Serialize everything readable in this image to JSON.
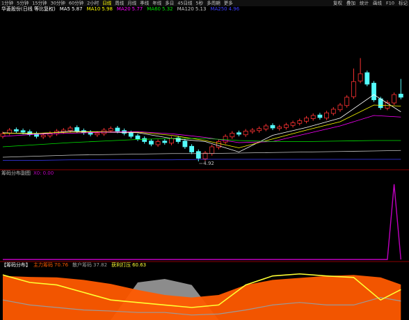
{
  "toolbar": {
    "tabs": [
      "1分钟",
      "5分钟",
      "15分钟",
      "30分钟",
      "60分钟",
      "2小时",
      "日线",
      "周线",
      "月线",
      "季线",
      "年线",
      "多日",
      "45日线",
      "5秒",
      "多周期",
      "更多"
    ],
    "right": [
      "复权",
      "叠加",
      "统计",
      "画线",
      "F10",
      "标记"
    ]
  },
  "chart_data": [
    {
      "type": "candlestick",
      "title": "华菱股份(日线 等比复权)",
      "ylim": [
        4.8,
        7.8
      ],
      "up_color": "#ff3232",
      "down_color": "#54fcfc",
      "open": [
        5.4,
        5.46,
        5.53,
        5.51,
        5.49,
        5.45,
        5.39,
        5.41,
        5.45,
        5.49,
        5.51,
        5.57,
        5.51,
        5.48,
        5.43,
        5.45,
        5.51,
        5.56,
        5.51,
        5.47,
        5.41,
        5.36,
        5.31,
        5.24,
        5.31,
        5.27,
        5.37,
        5.31,
        5.21,
        5.11,
        4.97,
        5.07,
        5.19,
        5.29,
        5.39,
        5.47,
        5.43,
        5.49,
        5.51,
        5.54,
        5.61,
        5.55,
        5.57,
        5.61,
        5.65,
        5.69,
        5.74,
        5.81,
        5.75,
        5.84,
        5.91,
        5.99,
        6.16,
        6.46,
        6.62,
        6.42,
        6.12,
        5.94,
        6.04,
        6.21
      ],
      "close": [
        5.45,
        5.52,
        5.5,
        5.48,
        5.44,
        5.4,
        5.42,
        5.46,
        5.5,
        5.52,
        5.56,
        5.5,
        5.47,
        5.44,
        5.46,
        5.52,
        5.55,
        5.5,
        5.46,
        5.4,
        5.35,
        5.3,
        5.25,
        5.3,
        5.28,
        5.36,
        5.3,
        5.2,
        5.1,
        4.98,
        5.08,
        5.2,
        5.3,
        5.4,
        5.46,
        5.44,
        5.5,
        5.52,
        5.55,
        5.6,
        5.56,
        5.58,
        5.62,
        5.66,
        5.7,
        5.75,
        5.8,
        5.76,
        5.85,
        5.92,
        6.0,
        6.15,
        6.45,
        6.6,
        6.4,
        6.1,
        5.95,
        6.05,
        6.2,
        6.15
      ],
      "high": [
        5.49,
        5.56,
        5.57,
        5.55,
        5.53,
        5.49,
        5.46,
        5.5,
        5.54,
        5.56,
        5.6,
        5.61,
        5.55,
        5.52,
        5.5,
        5.56,
        5.59,
        5.6,
        5.55,
        5.51,
        5.45,
        5.4,
        5.35,
        5.34,
        5.35,
        5.4,
        5.41,
        5.35,
        5.25,
        5.15,
        5.12,
        5.24,
        5.34,
        5.44,
        5.5,
        5.51,
        5.54,
        5.56,
        5.59,
        5.64,
        5.65,
        5.62,
        5.66,
        5.7,
        5.74,
        5.79,
        5.84,
        5.85,
        5.89,
        5.96,
        6.04,
        6.19,
        6.7,
        6.9,
        6.66,
        6.46,
        6.16,
        6.09,
        6.24,
        6.5
      ],
      "low": [
        5.36,
        5.42,
        5.46,
        5.44,
        5.4,
        5.36,
        5.35,
        5.37,
        5.41,
        5.45,
        5.47,
        5.46,
        5.43,
        5.4,
        5.39,
        5.41,
        5.47,
        5.46,
        5.42,
        5.36,
        5.31,
        5.26,
        5.21,
        5.2,
        5.24,
        5.23,
        5.26,
        5.16,
        5.06,
        4.92,
        4.93,
        5.03,
        5.15,
        5.25,
        5.35,
        5.4,
        5.39,
        5.45,
        5.47,
        5.5,
        5.52,
        5.51,
        5.53,
        5.57,
        5.61,
        5.65,
        5.7,
        5.72,
        5.71,
        5.8,
        5.87,
        5.95,
        6.12,
        6.42,
        6.36,
        6.06,
        5.91,
        5.9,
        6.0,
        6.11
      ],
      "low_label_index": 29,
      "series": [
        {
          "name": "MA5",
          "color": "#ffffff",
          "x": [
            0,
            5,
            10,
            15,
            20,
            25,
            30,
            35,
            40,
            45,
            50,
            55,
            59
          ],
          "values": [
            5.47,
            5.44,
            5.5,
            5.48,
            5.47,
            5.36,
            5.3,
            5.1,
            5.42,
            5.57,
            5.75,
            6.2,
            5.87
          ]
        },
        {
          "name": "MA10",
          "color": "#ffff00",
          "x": [
            0,
            5,
            10,
            15,
            20,
            25,
            30,
            35,
            40,
            45,
            50,
            55,
            59
          ],
          "values": [
            5.46,
            5.46,
            5.48,
            5.49,
            5.48,
            5.42,
            5.32,
            5.18,
            5.35,
            5.52,
            5.68,
            6.0,
            5.98
          ]
        },
        {
          "name": "MA20",
          "color": "#ff00ff",
          "x": [
            0,
            5,
            10,
            15,
            20,
            25,
            30,
            35,
            40,
            45,
            50,
            55,
            59
          ],
          "values": [
            5.4,
            5.44,
            5.46,
            5.48,
            5.49,
            5.45,
            5.38,
            5.28,
            5.3,
            5.45,
            5.6,
            5.8,
            5.77
          ]
        },
        {
          "name": "MA60",
          "color": "#00e600",
          "x": [
            0,
            5,
            10,
            15,
            20,
            25,
            30,
            35,
            40,
            45,
            50,
            55,
            59
          ],
          "values": [
            5.2,
            5.24,
            5.28,
            5.31,
            5.34,
            5.36,
            5.36,
            5.32,
            5.3,
            5.3,
            5.31,
            5.32,
            5.32
          ]
        },
        {
          "name": "MA120",
          "color": "#c8c8c8",
          "x": [
            0,
            5,
            10,
            15,
            20,
            25,
            30,
            35,
            40,
            45,
            50,
            55,
            59
          ],
          "values": [
            5.0,
            5.02,
            5.04,
            5.05,
            5.06,
            5.07,
            5.07,
            5.08,
            5.09,
            5.1,
            5.11,
            5.12,
            5.13
          ]
        },
        {
          "name": "MA250",
          "color": "#3c3cff",
          "x": [
            0,
            5,
            10,
            15,
            20,
            25,
            30,
            35,
            40,
            45,
            50,
            55,
            59
          ],
          "values": [
            4.94,
            4.94,
            4.95,
            4.95,
            4.95,
            4.95,
            4.96,
            4.96,
            4.96,
            4.96,
            4.96,
            4.96,
            4.96
          ]
        }
      ]
    },
    {
      "type": "line",
      "title": "筹码分布副图",
      "legend_name": "X0:",
      "legend_value": 0,
      "legend_label": "0.00",
      "color": "#c000c0",
      "ylim": [
        0,
        1.1
      ],
      "values": [
        0,
        0,
        0,
        0,
        0,
        0,
        0,
        0,
        0,
        0,
        0,
        0,
        0,
        0,
        0,
        0,
        0,
        0,
        0,
        0,
        0,
        0,
        0,
        0,
        0,
        0,
        0,
        0,
        0,
        0,
        0,
        0,
        0,
        0,
        0,
        0,
        0,
        0,
        0,
        0,
        0,
        0,
        0,
        0,
        0,
        0,
        0,
        0,
        0,
        0,
        0,
        0,
        0,
        0,
        0,
        0,
        0,
        0,
        1,
        0
      ]
    },
    {
      "type": "area",
      "title": "【筹码分布】",
      "ylim": [
        0,
        100
      ],
      "x": [
        0,
        4,
        8,
        12,
        16,
        20,
        24,
        28,
        32,
        36,
        40,
        44,
        48,
        52,
        56,
        59
      ],
      "shade": {
        "color": "#8c8c8c",
        "values": [
          0,
          0,
          0,
          0,
          0,
          75,
          82,
          70,
          0,
          0,
          0,
          0,
          0,
          0,
          0,
          0
        ]
      },
      "series": [
        {
          "name": "主力筹码",
          "color": "#ff5a00",
          "style": "area",
          "values": [
            88,
            86,
            85,
            80,
            72,
            60,
            50,
            45,
            50,
            70,
            80,
            84,
            88,
            90,
            85,
            70.76
          ]
        },
        {
          "name": "散户筹码",
          "color": "#9a9a9a",
          "style": "line",
          "values": [
            40,
            30,
            25,
            20,
            18,
            15,
            15,
            10,
            12,
            20,
            30,
            35,
            30,
            30,
            45,
            37.82
          ]
        },
        {
          "name": "获利打压",
          "color": "#ffff33",
          "style": "line",
          "values": [
            90,
            75,
            70,
            55,
            40,
            35,
            30,
            25,
            30,
            70,
            88,
            92,
            88,
            85,
            40,
            60.63
          ]
        }
      ]
    }
  ]
}
